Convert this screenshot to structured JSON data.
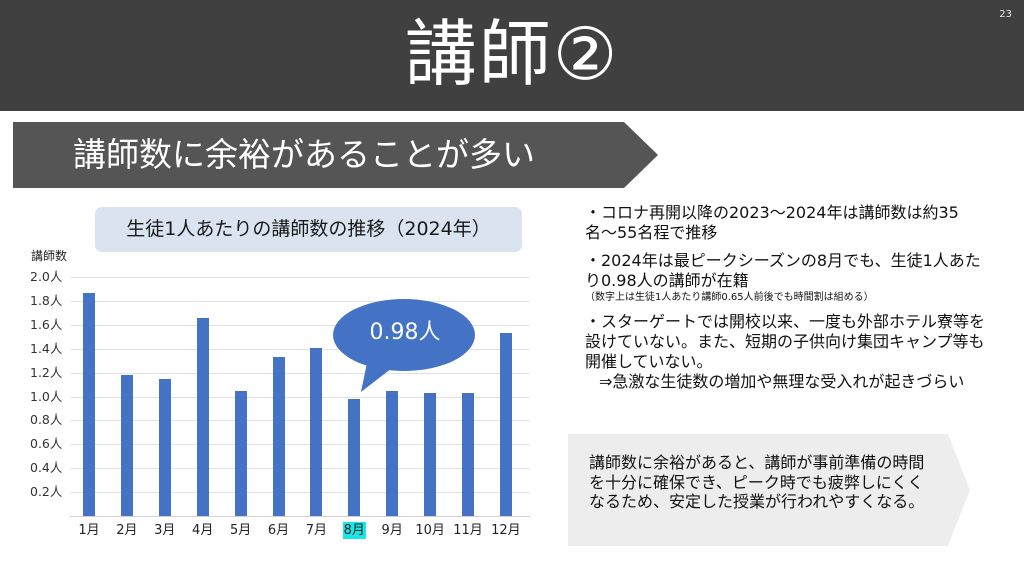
{
  "header": {
    "title": "講師②",
    "page_number": "23",
    "background": "#404040"
  },
  "banner": {
    "text": "講師数に余裕があることが多い",
    "background": "#555555"
  },
  "chart_title": "生徒1人あたりの講師数の推移（2024年）",
  "chart_data": {
    "type": "bar",
    "title": "生徒1人あたりの講師数の推移（2024年）",
    "xlabel": "",
    "ylabel": "講師数",
    "categories": [
      "1月",
      "2月",
      "3月",
      "4月",
      "5月",
      "6月",
      "7月",
      "8月",
      "9月",
      "10月",
      "11月",
      "12月"
    ],
    "values": [
      1.87,
      1.18,
      1.15,
      1.66,
      1.05,
      1.33,
      1.41,
      0.98,
      1.05,
      1.03,
      1.03,
      1.53
    ],
    "unit": "人",
    "ylim": [
      0,
      2.0
    ],
    "y_ticks": [
      "0.2人",
      "0.4人",
      "0.6人",
      "0.8人",
      "1.0人",
      "1.2人",
      "1.4人",
      "1.6人",
      "1.8人",
      "2.0人"
    ],
    "grid": true,
    "bar_color": "#4472C4",
    "highlight_category": "8月",
    "highlight_color": "#19E6E6",
    "annotation": {
      "text": "0.98人",
      "target": "8月",
      "shape": "oval-callout"
    }
  },
  "bullets": [
    {
      "text": "・コロナ再開以降の2023〜2024年は講師数は約35名〜55名程で推移"
    },
    {
      "text": "・2024年は最ピークシーズンの8月でも、生徒1人あたり0.98人の講師が在籍",
      "note": "（数字上は生徒1人あたり講師0.65人前後でも時間割は組める）"
    },
    {
      "text": "・スターゲートでは開校以来、一度も外部ホテル寮等を設けていない。また、短期の子供向け集団キャンプ等も開催していない。",
      "followup": "⇒急激な生徒数の増加や無理な受入れが起きづらい"
    }
  ],
  "summary": {
    "text": "講師数に余裕があると、講師が事前準備の時間を十分に確保でき、ピーク時でも疲弊しにくくなるため、安定した授業が行われやすくなる。",
    "background": "#EDEDED"
  }
}
